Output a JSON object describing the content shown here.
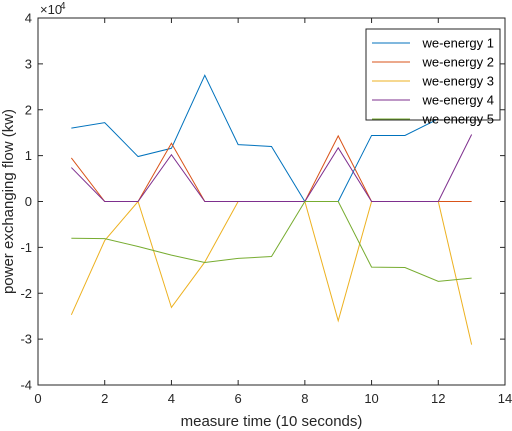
{
  "chart_data": {
    "type": "line",
    "xlabel": "measure time (10 seconds)",
    "ylabel": "power exchanging flow (kw)",
    "y_exponent_base": "×10",
    "y_exponent_power": "4",
    "xlim": [
      0,
      14
    ],
    "ylim": [
      -4,
      4
    ],
    "y_scale_factor": 10000,
    "xticks": [
      0,
      2,
      4,
      6,
      8,
      10,
      12,
      14
    ],
    "yticks": [
      -4,
      -3,
      -2,
      -1,
      0,
      1,
      2,
      3,
      4
    ],
    "grid": false,
    "legend_position": "top-right",
    "x": [
      1,
      2,
      3,
      4,
      5,
      6,
      7,
      8,
      9,
      10,
      11,
      12,
      13
    ],
    "series": [
      {
        "name": "we-energy 1",
        "color": "#0072BD",
        "values": [
          1.6,
          1.72,
          0.98,
          1.16,
          2.75,
          1.24,
          1.2,
          0,
          0,
          1.44,
          1.44,
          1.8,
          1.8
        ]
      },
      {
        "name": "we-energy 2",
        "color": "#D95319",
        "values": [
          0.95,
          0,
          0,
          1.27,
          0,
          0,
          0,
          0,
          1.43,
          0,
          0,
          0,
          0
        ]
      },
      {
        "name": "we-energy 3",
        "color": "#EDB120",
        "values": [
          -2.47,
          -0.85,
          0,
          -2.31,
          -1.32,
          0,
          null,
          0,
          -2.6,
          0,
          null,
          0,
          -3.12
        ]
      },
      {
        "name": "we-energy 4",
        "color": "#7E2F8E",
        "values": [
          0.74,
          0,
          0,
          1.02,
          0,
          0,
          0,
          0,
          1.17,
          0,
          0,
          0,
          1.46
        ]
      },
      {
        "name": "we-energy 5",
        "color": "#77AC30",
        "values": [
          -0.8,
          -0.81,
          -0.98,
          -1.17,
          -1.33,
          -1.24,
          -1.2,
          0,
          0,
          -1.43,
          -1.44,
          -1.74,
          -1.67
        ]
      }
    ]
  }
}
